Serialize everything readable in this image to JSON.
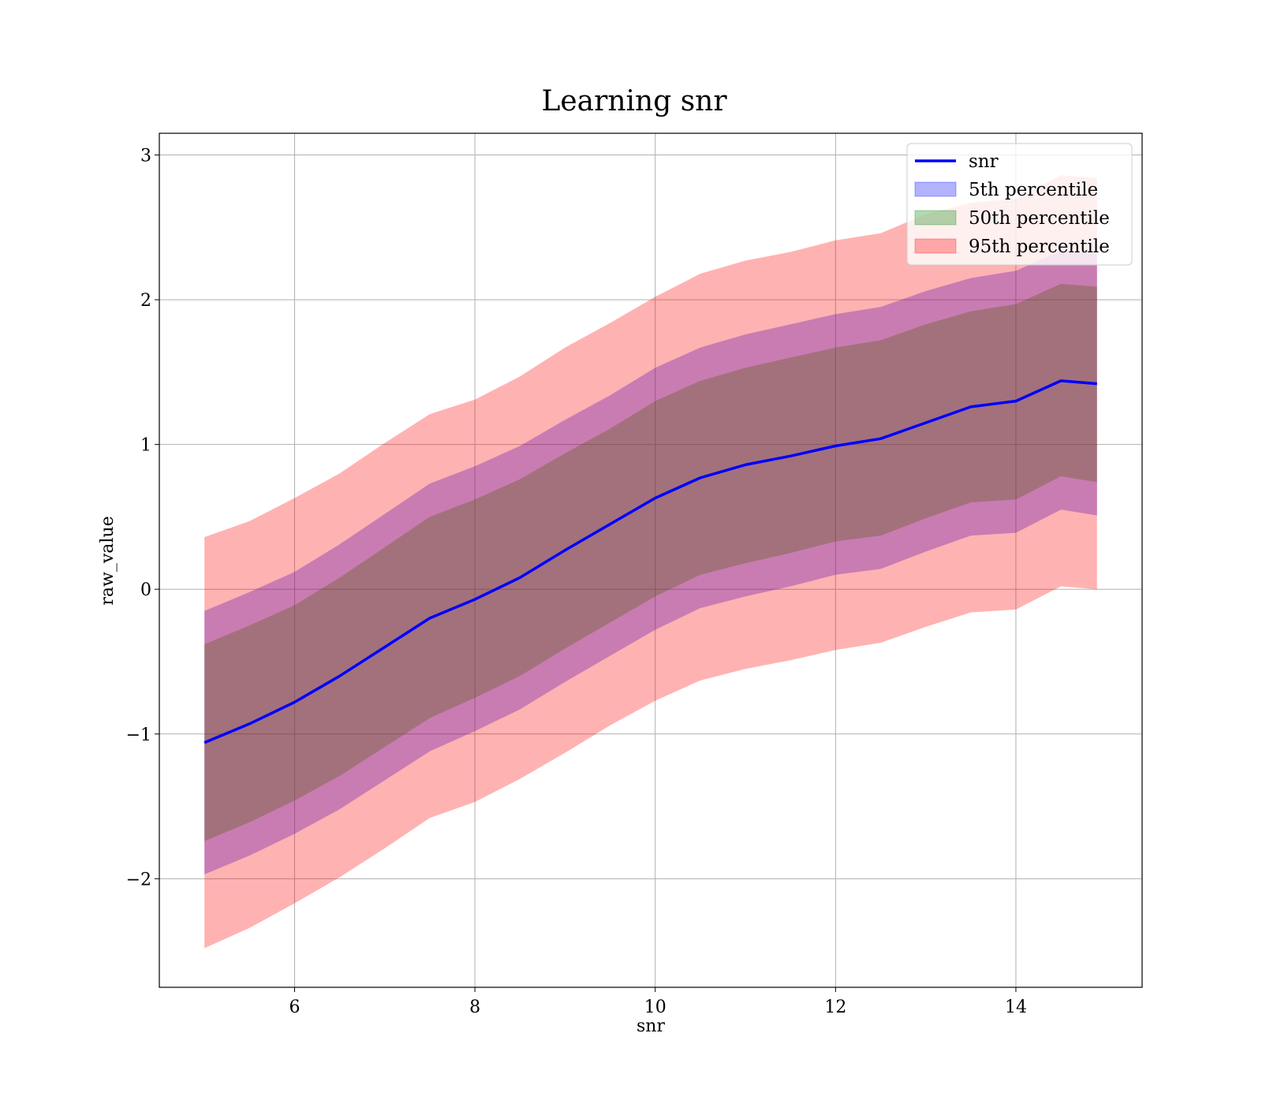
{
  "chart_data": {
    "type": "line",
    "title": "Learning snr",
    "xlabel": "snr",
    "ylabel": "raw_value",
    "xlim": [
      4.5,
      15.4
    ],
    "ylim": [
      -2.75,
      3.15
    ],
    "xticks": [
      6,
      8,
      10,
      12,
      14
    ],
    "yticks": [
      -2,
      -1,
      0,
      1,
      2,
      3
    ],
    "ytick_labels": [
      "−2",
      "−1",
      "0",
      "1",
      "2",
      "3"
    ],
    "grid": true,
    "legend_position": "top-right",
    "x": [
      5.0,
      5.5,
      6.0,
      6.5,
      7.0,
      7.5,
      8.0,
      8.5,
      9.0,
      9.5,
      10.0,
      10.5,
      11.0,
      11.5,
      12.0,
      12.5,
      13.0,
      13.5,
      14.0,
      14.5,
      14.9
    ],
    "series": [
      {
        "name": "snr",
        "kind": "line",
        "color": "#0000ff",
        "values": [
          -1.06,
          -0.93,
          -0.78,
          -0.6,
          -0.4,
          -0.2,
          -0.07,
          0.08,
          0.27,
          0.45,
          0.63,
          0.77,
          0.86,
          0.92,
          0.99,
          1.04,
          1.15,
          1.26,
          1.3,
          1.44,
          1.42
        ]
      },
      {
        "name": "5th percentile",
        "kind": "band",
        "color": "#0000ff",
        "lower": [
          -1.97,
          -1.84,
          -1.69,
          -1.52,
          -1.32,
          -1.12,
          -0.98,
          -0.83,
          -0.64,
          -0.46,
          -0.28,
          -0.13,
          -0.05,
          0.02,
          0.1,
          0.14,
          0.26,
          0.37,
          0.39,
          0.55,
          0.51
        ],
        "upper": [
          -0.15,
          -0.02,
          0.12,
          0.31,
          0.52,
          0.73,
          0.85,
          0.99,
          1.17,
          1.34,
          1.53,
          1.67,
          1.76,
          1.83,
          1.9,
          1.95,
          2.06,
          2.15,
          2.2,
          2.34,
          2.32
        ]
      },
      {
        "name": "50th percentile",
        "kind": "band",
        "color": "#008000",
        "lower": [
          -1.74,
          -1.61,
          -1.46,
          -1.29,
          -1.09,
          -0.89,
          -0.75,
          -0.6,
          -0.41,
          -0.23,
          -0.05,
          0.1,
          0.18,
          0.25,
          0.33,
          0.37,
          0.49,
          0.6,
          0.62,
          0.78,
          0.74
        ],
        "upper": [
          -0.38,
          -0.25,
          -0.11,
          0.08,
          0.29,
          0.5,
          0.62,
          0.76,
          0.94,
          1.11,
          1.3,
          1.44,
          1.53,
          1.6,
          1.67,
          1.72,
          1.83,
          1.92,
          1.97,
          2.11,
          2.09
        ]
      },
      {
        "name": "95th percentile",
        "kind": "band",
        "color": "#ff0000",
        "lower": [
          -2.48,
          -2.34,
          -2.17,
          -1.99,
          -1.79,
          -1.58,
          -1.47,
          -1.31,
          -1.13,
          -0.94,
          -0.77,
          -0.63,
          -0.55,
          -0.49,
          -0.42,
          -0.37,
          -0.26,
          -0.16,
          -0.14,
          0.02,
          0.0
        ],
        "upper": [
          0.36,
          0.47,
          0.63,
          0.8,
          1.01,
          1.21,
          1.31,
          1.47,
          1.67,
          1.84,
          2.02,
          2.18,
          2.27,
          2.33,
          2.41,
          2.46,
          2.59,
          2.67,
          2.7,
          2.86,
          2.84
        ]
      }
    ]
  }
}
